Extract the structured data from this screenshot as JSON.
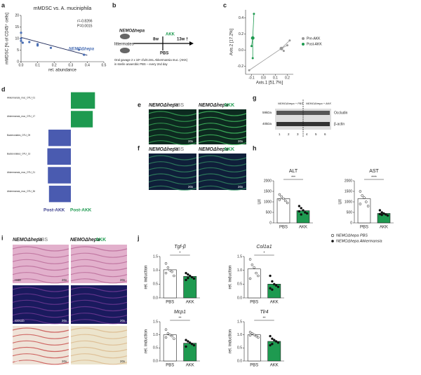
{
  "panels": {
    "letters": [
      "a",
      "b",
      "c",
      "d",
      "e",
      "f",
      "g",
      "h",
      "i",
      "j"
    ],
    "b": {
      "mouse": "NEMOΔhepa",
      "littermates": "littermates",
      "akk": "AKK",
      "pbs": "PBS",
      "w8": "8w",
      "w13": "13w †",
      "note1": "Oral gavage 2 x 10⁸ cfu/0.2mL Akkermansia muc. (AKK)",
      "note2": "in sterile anaerobic PBS – every 2nd day"
    },
    "e": {
      "genotype_pbs": "NEMOΔhepa",
      "pbs": "PBS",
      "genotype_akk": "NEMOΔhepa",
      "akk": "AKK",
      "mag": [
        "20x",
        "20x"
      ]
    },
    "f": {
      "genotype_pbs": "NEMOΔhepa",
      "pbs": "PBS",
      "genotype_akk": "NEMOΔhepa",
      "akk": "AKK",
      "mag": [
        "20x",
        "20x"
      ]
    },
    "g": {
      "kda": [
        "59kDa",
        "40kDa"
      ],
      "proteins": [
        "Occludin",
        "β-actin"
      ],
      "lanes": [
        "1",
        "2",
        "3",
        "4",
        "5",
        "6"
      ],
      "group_pbs": "NEMOΔhepa + PBS",
      "group_akk": "NEMOΔhepa + AKK"
    },
    "h": {
      "legend": [
        "NEMOΔhepa PBS",
        "NEMOΔhepa Akkermansia"
      ]
    },
    "i": {
      "genotype_pbs": "NEMOΔhepa",
      "pbs": "PBS",
      "genotype_akk": "NEMOΔhepa",
      "akk": "AKK",
      "stains": [
        "H&E",
        "CD11b",
        "SR"
      ],
      "mag": [
        "20x",
        "20x",
        "20x",
        "20x",
        "20x",
        "20x"
      ]
    }
  },
  "chart_data": [
    {
      "type": "scatter",
      "title": "mMDSC vs. A. muciniphila",
      "xlabel": "rel. abundance",
      "ylabel": "mMDSC [% of CD45⁺ cells]",
      "xlim": [
        0,
        0.5
      ],
      "xticks": [
        {
          "value": 0,
          "label": "0.0"
        },
        0.1,
        0.2,
        0.3,
        0.4,
        0.5
      ],
      "ylim": [
        0,
        20
      ],
      "yticks": [
        0,
        5,
        10,
        15,
        20
      ],
      "points": {
        "color": "#4a6fb5",
        "x": [
          0,
          0,
          0,
          0.01,
          0.05,
          0.1,
          0.1,
          0.18,
          0.35,
          0.38
        ],
        "y": [
          12.5,
          10,
          9,
          8.2,
          8.5,
          7,
          7.6,
          6,
          5.2,
          3
        ]
      },
      "fit": {
        "color": "#1f2a5a",
        "x": [
          0,
          0.4
        ],
        "y": [
          10.5,
          2.8
        ]
      },
      "annotations": [
        "r=-0.8266",
        "P=0.0015",
        "NEMOΔhepa"
      ]
    },
    {
      "type": "scatter",
      "xlabel": "Axis.1  [51.7%]",
      "ylabel": "Axis.2  [17.2%]",
      "xlim": [
        -0.15,
        0.25
      ],
      "xticks": [
        -0.1,
        {
          "value": 0,
          "label": "0.0"
        },
        0.1,
        0.2
      ],
      "ylim": [
        -0.3,
        0.5
      ],
      "yticks": [
        -0.2,
        {
          "value": 0,
          "label": "0.0"
        },
        0.2,
        0.4
      ],
      "series": [
        {
          "name": "Pre-AKK",
          "color": "#999999",
          "centroid": [
            0.15,
            0.02
          ],
          "x": [
            0.22,
            0.2,
            0.17,
            -0.12
          ],
          "y": [
            0.12,
            0.06,
            -0.01,
            -0.25
          ]
        },
        {
          "name": "Post-AKK",
          "color": "#1e9a50",
          "centroid": [
            -0.09,
            0.15
          ],
          "x": [
            -0.08,
            -0.1,
            -0.09
          ],
          "y": [
            0.45,
            0.05,
            -0.1
          ]
        }
      ]
    },
    {
      "type": "bar",
      "orientation": "horizontal",
      "categories": [
        "Akkermansia_muc_OTU_01",
        "Akkermansia_muc_OTU_17",
        "Bacteroidales_OTU_09",
        "Bacteroidales_OTU_13",
        "Akkermansia_muc_OTU_21",
        "Akkermansia_muc_OTU_36"
      ],
      "values": [
        4.4,
        4.0,
        -4.1,
        -4.3,
        -4.2,
        -4.0
      ],
      "colors": [
        "#1e9a50",
        "#1e9a50",
        "#4a5bb0",
        "#4a5bb0",
        "#4a5bb0",
        "#4a5bb0"
      ],
      "xlim": [
        -5,
        5
      ],
      "legend": [
        {
          "name": "Post-AKK",
          "color": "#3b3f8c"
        },
        {
          "name": "Post-AKK",
          "color": "#1e9a50"
        }
      ]
    },
    {
      "type": "bar",
      "title": "ALT",
      "ylabel": "U/l",
      "categories": [
        "PBS",
        "AKK"
      ],
      "values": [
        1150,
        580
      ],
      "colors": [
        "#ffffff",
        "#1e9a50"
      ],
      "point_colors": [
        "#ffffff",
        "#111111"
      ],
      "points": [
        [
          1350,
          1250,
          1150,
          1050,
          950,
          1100
        ],
        [
          800,
          700,
          600,
          500,
          450,
          550,
          400
        ]
      ],
      "ylim": [
        0,
        2000
      ],
      "yticks": [
        0,
        500,
        1000,
        1500,
        2000
      ],
      "significance": "***"
    },
    {
      "type": "bar",
      "title": "AST",
      "ylabel": "U/l",
      "categories": [
        "PBS",
        "AKK"
      ],
      "values": [
        1150,
        450
      ],
      "colors": [
        "#ffffff",
        "#1e9a50"
      ],
      "point_colors": [
        "#ffffff",
        "#111111"
      ],
      "points": [
        [
          1500,
          1300,
          1200,
          1000,
          800,
          900
        ],
        [
          600,
          500,
          450,
          400,
          350,
          420,
          380
        ]
      ],
      "ylim": [
        0,
        2000
      ],
      "yticks": [
        0,
        500,
        1000,
        1500,
        2000
      ],
      "significance": "****"
    },
    {
      "type": "bar",
      "title": "Tgf-β",
      "ylabel": "rel. induction",
      "categories": [
        "PBS",
        "AKK"
      ],
      "values": [
        1.02,
        0.78
      ],
      "colors": [
        "#ffffff",
        "#1e9a50"
      ],
      "point_colors": [
        "#ffffff",
        "#111111"
      ],
      "points": [
        [
          1.25,
          1.1,
          1.0,
          0.95,
          0.8,
          0.9
        ],
        [
          0.9,
          0.85,
          0.8,
          0.75,
          0.7,
          0.65,
          0.72
        ]
      ],
      "ylim": [
        0,
        1.5
      ],
      "yticks": [
        {
          "value": 0,
          "label": "0.0"
        },
        0.5,
        {
          "value": 1,
          "label": "1.0"
        },
        1.5
      ],
      "significance": "*"
    },
    {
      "type": "bar",
      "title": "Col1a1",
      "ylabel": "rel. induction",
      "categories": [
        "PBS",
        "AKK"
      ],
      "values": [
        1.05,
        0.5
      ],
      "colors": [
        "#ffffff",
        "#1e9a50"
      ],
      "point_colors": [
        "#ffffff",
        "#111111"
      ],
      "points": [
        [
          1.4,
          1.2,
          1.1,
          0.9,
          0.8,
          0.7
        ],
        [
          0.8,
          0.6,
          0.5,
          0.45,
          0.4,
          0.35,
          0.3
        ]
      ],
      "ylim": [
        0,
        1.5
      ],
      "yticks": [
        {
          "value": 0,
          "label": "0.0"
        },
        0.5,
        {
          "value": 1,
          "label": "1.0"
        },
        1.5
      ],
      "significance": "*"
    },
    {
      "type": "bar",
      "title": "Mcp1",
      "ylabel": "rel. induction",
      "categories": [
        "PBS",
        "AKK"
      ],
      "values": [
        1.0,
        0.68
      ],
      "colors": [
        "#ffffff",
        "#1e9a50"
      ],
      "point_colors": [
        "#ffffff",
        "#111111"
      ],
      "points": [
        [
          1.2,
          1.05,
          1.0,
          0.95,
          0.85,
          0.9
        ],
        [
          0.8,
          0.75,
          0.7,
          0.65,
          0.6,
          0.55
        ]
      ],
      "ylim": [
        0,
        1.5
      ],
      "yticks": [
        {
          "value": 0,
          "label": "0.0"
        },
        0.5,
        {
          "value": 1,
          "label": "1.0"
        },
        1.5
      ],
      "significance": "**"
    },
    {
      "type": "bar",
      "title": "Tlr4",
      "ylabel": "rel. induction",
      "categories": [
        "PBS",
        "AKK"
      ],
      "values": [
        1.0,
        0.75
      ],
      "colors": [
        "#ffffff",
        "#1e9a50"
      ],
      "point_colors": [
        "#ffffff",
        "#111111"
      ],
      "points": [
        [
          1.1,
          1.05,
          1.0,
          0.95,
          0.9,
          0.98
        ],
        [
          0.95,
          0.85,
          0.8,
          0.75,
          0.7,
          0.6,
          0.65
        ]
      ],
      "ylim": [
        0,
        1.5
      ],
      "yticks": [
        {
          "value": 0,
          "label": "0.0"
        },
        0.5,
        {
          "value": 1,
          "label": "1.0"
        },
        1.5
      ],
      "significance": "**"
    }
  ]
}
